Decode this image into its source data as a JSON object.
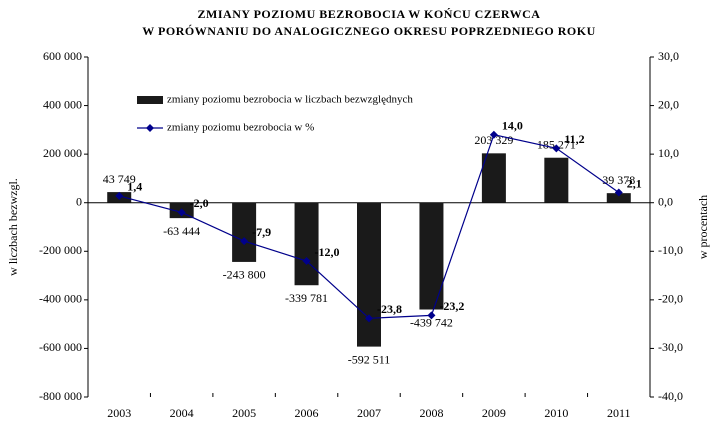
{
  "chart_data": {
    "type": "bar",
    "title": "ZMIANY POZIOMU BEZROBOCIA W KOŃCU CZERWCA",
    "subtitle": "W PORÓWNANIU DO ANALOGICZNEGO OKRESU POPRZEDNIEGO ROKU",
    "y_label": "w liczbach bezwzgl.",
    "y2_label": "w procentach",
    "categories": [
      "2003",
      "2004",
      "2005",
      "2006",
      "2007",
      "2008",
      "2009",
      "2010",
      "2011"
    ],
    "series": [
      {
        "name": "zmiany poziomu bezrobocia w liczbach bezwzględnych",
        "type": "bar",
        "color": "#1a1a1a",
        "values": [
          43749,
          -63444,
          -243800,
          -339781,
          -592511,
          -439742,
          203329,
          185271,
          39378
        ],
        "value_labels": [
          "43 749",
          "-63 444",
          "-243 800",
          "-339 781",
          "-592 511",
          "-439 742",
          "203 329",
          "185 271",
          "39 378"
        ]
      },
      {
        "name": "zmiany poziomu bezrobocia w %",
        "type": "line",
        "axis": "y2",
        "color": "#00008b",
        "values": [
          1.4,
          -2.0,
          -7.9,
          -12.0,
          -23.8,
          -23.2,
          14.0,
          11.2,
          2.1
        ],
        "value_labels": [
          "1,4",
          "-2,0",
          "-7,9",
          "-12,0",
          "-23,8",
          "-23,2",
          "14,0",
          "11,2",
          "2,1"
        ]
      }
    ],
    "ylim": [
      -800000,
      600000
    ],
    "yticks": [
      {
        "value": -800000,
        "label": "-800 000"
      },
      {
        "value": -600000,
        "label": "-600 000"
      },
      {
        "value": -400000,
        "label": "-400 000"
      },
      {
        "value": -200000,
        "label": "-200 000"
      },
      0,
      {
        "value": 200000,
        "label": "200 000"
      },
      {
        "value": 400000,
        "label": "400 000"
      },
      {
        "value": 600000,
        "label": "600 000"
      }
    ],
    "y2lim": [
      -40,
      30
    ],
    "y2ticks": [
      {
        "value": -40,
        "label": "-40,0"
      },
      {
        "value": -30,
        "label": "-30,0"
      },
      {
        "value": -20,
        "label": "-20,0"
      },
      {
        "value": -10,
        "label": "-10,0"
      },
      {
        "value": 0,
        "label": "0,0"
      },
      {
        "value": 10,
        "label": "10,0"
      },
      {
        "value": 20,
        "label": "20,0"
      },
      {
        "value": 30,
        "label": "30,0"
      }
    ],
    "grid": false,
    "legend": "top-left"
  }
}
